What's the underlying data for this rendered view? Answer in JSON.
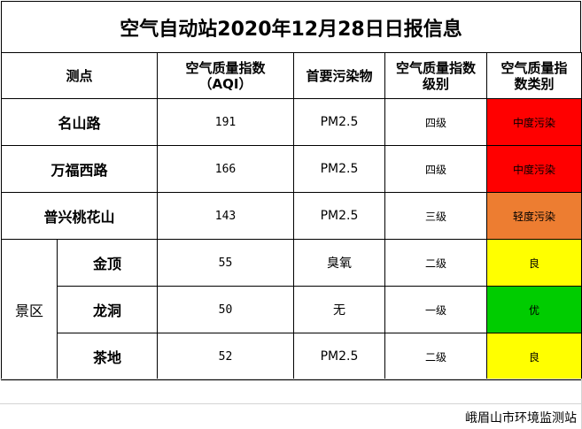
{
  "title": "空气自动站2020年12月28日日报信息",
  "headers": {
    "site": "测点",
    "aqi_line1": "空气质量指数",
    "aqi_line2": "（AQI）",
    "pollutant": "首要污染物",
    "grade_line1": "空气质量指数",
    "grade_line2": "级别",
    "category_line1": "空气质量指",
    "category_line2": "数类别"
  },
  "rows": [
    {
      "site": "名山路",
      "aqi": "191",
      "pollutant": "PM2.5",
      "grade": "四级",
      "category": "中度污染",
      "color": "#ff0000"
    },
    {
      "site": "万福西路",
      "aqi": "166",
      "pollutant": "PM2.5",
      "grade": "四级",
      "category": "中度污染",
      "color": "#ff0000"
    },
    {
      "site": "普兴桃花山",
      "aqi": "143",
      "pollutant": "PM2.5",
      "grade": "三级",
      "category": "轻度污染",
      "color": "#ed7d31"
    }
  ],
  "scenic": {
    "label": "景区",
    "rows": [
      {
        "site": "金顶",
        "aqi": "55",
        "pollutant": "臭氧",
        "grade": "二级",
        "category": "良",
        "color": "#ffff00"
      },
      {
        "site": "龙洞",
        "aqi": "50",
        "pollutant": "无",
        "grade": "一级",
        "category": "优",
        "color": "#00cc00"
      },
      {
        "site": "茶地",
        "aqi": "52",
        "pollutant": "PM2.5",
        "grade": "二级",
        "category": "良",
        "color": "#ffff00"
      }
    ]
  },
  "footer": "峨眉山市环境监测站"
}
